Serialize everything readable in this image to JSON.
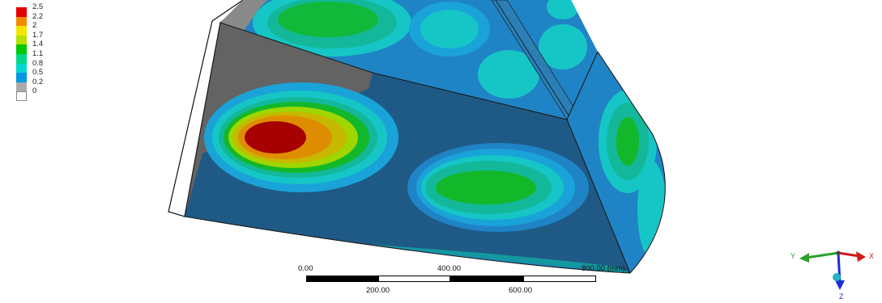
{
  "legend": {
    "entries": [
      {
        "label": "2.5",
        "color": "#e00000"
      },
      {
        "label": "2.2",
        "color": "#f08a00"
      },
      {
        "label": "2",
        "color": "#f2e600"
      },
      {
        "label": "1.7",
        "color": "#b6e000"
      },
      {
        "label": "1.4",
        "color": "#00c800"
      },
      {
        "label": "1.1",
        "color": "#00d88a"
      },
      {
        "label": "0.8",
        "color": "#00d8d0"
      },
      {
        "label": "0.5",
        "color": "#0096e0"
      },
      {
        "label": "0.2",
        "color": "#aaaaaa"
      },
      {
        "label": "0",
        "color": "#ffffff"
      }
    ]
  },
  "scalebar": {
    "top_labels": [
      "0.00",
      "400.00",
      "800.00 (mm)"
    ],
    "bottom_labels": [
      "200.00",
      "600.00"
    ]
  },
  "triad": {
    "x_label": "X",
    "y_label": "Y",
    "z_label": "Z",
    "x_color": "#d11a1a",
    "y_color": "#2aa02a",
    "z_color": "#1a2fd1"
  },
  "model": {
    "colors": {
      "gray": "#8a8a8a",
      "dark_gray": "#636363",
      "deep_blue": "#1f5a86",
      "blue": "#1f84c6",
      "light_blue": "#1aa3d9",
      "cyan": "#16c6c6",
      "teal": "#13b89a",
      "green": "#12b829",
      "green_dark": "#0a9a18",
      "yellow_green": "#9fd600",
      "yellow": "#e3d400",
      "orange": "#e08a00",
      "red": "#a60000"
    }
  }
}
